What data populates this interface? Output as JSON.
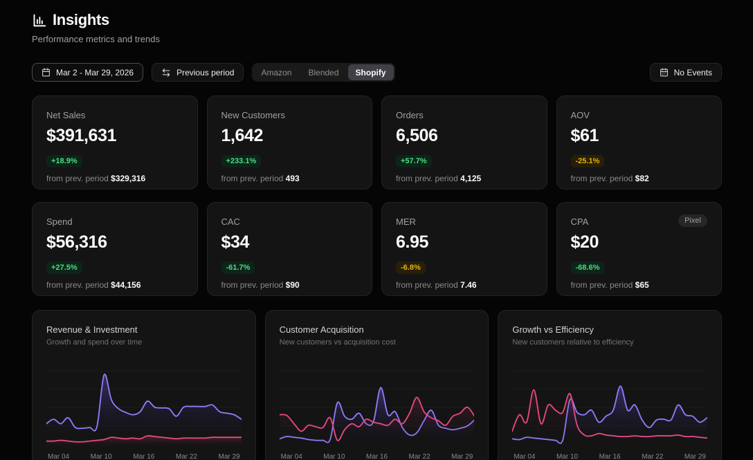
{
  "header": {
    "title": "Insights",
    "subtitle": "Performance metrics and trends"
  },
  "toolbar": {
    "date_range": "Mar 2 - Mar 29, 2026",
    "previous_period_label": "Previous period",
    "segments": [
      "Amazon",
      "Blended",
      "Shopify"
    ],
    "active_segment": "Shopify",
    "no_events_label": "No Events"
  },
  "icons": {
    "header": "bar-chart-icon",
    "date_button": "calendar-icon",
    "previous_period": "swap-arrows-icon",
    "no_events": "calendar-days-icon"
  },
  "colors": {
    "background": "#050505",
    "card": "#141414",
    "card_border": "#232323",
    "positive_text": "#4ade80",
    "positive_bg": "#0d2419",
    "warning_text": "#e9b308",
    "warning_bg": "#271f07",
    "series_purple": "#8b7cf6",
    "series_pink": "#e5487f"
  },
  "kpis": [
    {
      "label": "Net Sales",
      "value": "$391,631",
      "change": "+18.9%",
      "tone": "positive",
      "prev_label": "from prev. period",
      "prev_value": "$329,316"
    },
    {
      "label": "New Customers",
      "value": "1,642",
      "change": "+233.1%",
      "tone": "positive",
      "prev_label": "from prev. period",
      "prev_value": "493"
    },
    {
      "label": "Orders",
      "value": "6,506",
      "change": "+57.7%",
      "tone": "positive",
      "prev_label": "from prev. period",
      "prev_value": "4,125"
    },
    {
      "label": "AOV",
      "value": "$61",
      "change": "-25.1%",
      "tone": "warning",
      "prev_label": "from prev. period",
      "prev_value": "$82"
    },
    {
      "label": "Spend",
      "value": "$56,316",
      "change": "+27.5%",
      "tone": "positive",
      "prev_label": "from prev. period",
      "prev_value": "$44,156"
    },
    {
      "label": "CAC",
      "value": "$34",
      "change": "-61.7%",
      "tone": "positive",
      "prev_label": "from prev. period",
      "prev_value": "$90"
    },
    {
      "label": "MER",
      "value": "6.95",
      "change": "-6.8%",
      "tone": "warning",
      "prev_label": "from prev. period",
      "prev_value": "7.46"
    },
    {
      "label": "CPA",
      "value": "$20",
      "change": "-68.6%",
      "tone": "positive",
      "prev_label": "from prev. period",
      "prev_value": "$65",
      "tag": "Pixel"
    }
  ],
  "chart_data": [
    {
      "type": "line",
      "title": "Revenue & Investment",
      "subtitle": "Growth and spend over time",
      "x_labels": [
        "Mar 04",
        "Mar 10",
        "Mar 16",
        "Mar 22",
        "Mar 29"
      ],
      "x_range": [
        "Mar 2",
        "Mar 29"
      ],
      "ylim": [
        0,
        100
      ],
      "grid": true,
      "legend": "none",
      "series": [
        {
          "name": "Revenue",
          "color": "#8b7cf6",
          "fill": "rgba(124,92,246,0.38)",
          "values": [
            30,
            36,
            30,
            38,
            25,
            24,
            25,
            26,
            95,
            62,
            50,
            45,
            42,
            46,
            60,
            52,
            51,
            50,
            40,
            52,
            53,
            53,
            53,
            55,
            46,
            44,
            42,
            36
          ]
        },
        {
          "name": "Spend",
          "color": "#e5487f",
          "fill": "rgba(229,72,127,0.28)",
          "values": [
            7,
            7,
            8,
            7,
            6,
            6,
            7,
            8,
            9,
            12,
            11,
            10,
            11,
            10,
            14,
            13,
            12,
            11,
            10,
            11,
            11,
            11,
            11,
            12,
            12,
            12,
            12,
            12
          ]
        }
      ]
    },
    {
      "type": "line",
      "title": "Customer Acquisition",
      "subtitle": "New customers vs acquisition cost",
      "x_labels": [
        "Mar 04",
        "Mar 10",
        "Mar 16",
        "Mar 22",
        "Mar 29"
      ],
      "x_range": [
        "Mar 2",
        "Mar 29"
      ],
      "ylim": [
        0,
        100
      ],
      "grid": true,
      "legend": "none",
      "series": [
        {
          "name": "New Customers",
          "color": "#8b7cf6",
          "fill": "rgba(124,92,246,0.38)",
          "values": [
            10,
            13,
            12,
            11,
            9,
            8,
            8,
            9,
            58,
            40,
            36,
            44,
            30,
            33,
            78,
            42,
            46,
            25,
            15,
            18,
            34,
            48,
            28,
            24,
            22,
            24,
            27,
            35
          ]
        },
        {
          "name": "Acquisition Cost",
          "color": "#e5487f",
          "fill": "rgba(229,72,127,0.18)",
          "values": [
            42,
            41,
            30,
            20,
            28,
            26,
            25,
            38,
            8,
            22,
            30,
            26,
            36,
            32,
            30,
            28,
            36,
            30,
            44,
            65,
            46,
            38,
            34,
            28,
            40,
            44,
            52,
            40
          ]
        }
      ]
    },
    {
      "type": "line",
      "title": "Growth vs Efficiency",
      "subtitle": "New customers relative to efficiency",
      "x_labels": [
        "Mar 04",
        "Mar 10",
        "Mar 16",
        "Mar 22",
        "Mar 29"
      ],
      "x_range": [
        "Mar 2",
        "Mar 29"
      ],
      "ylim": [
        0,
        100
      ],
      "grid": true,
      "legend": "none",
      "series": [
        {
          "name": "New Customers",
          "color": "#8b7cf6",
          "fill": "rgba(124,92,246,0.38)",
          "values": [
            10,
            9,
            12,
            11,
            10,
            9,
            8,
            8,
            62,
            45,
            42,
            48,
            32,
            40,
            48,
            80,
            48,
            55,
            35,
            25,
            35,
            36,
            35,
            55,
            42,
            40,
            32,
            38
          ]
        },
        {
          "name": "Efficiency",
          "color": "#e5487f",
          "fill": "rgba(229,72,127,0.12)",
          "values": [
            20,
            42,
            32,
            75,
            30,
            55,
            48,
            45,
            70,
            28,
            15,
            14,
            17,
            15,
            14,
            13,
            13,
            14,
            13,
            13,
            14,
            14,
            14,
            15,
            13,
            13,
            12,
            11
          ]
        }
      ]
    }
  ]
}
